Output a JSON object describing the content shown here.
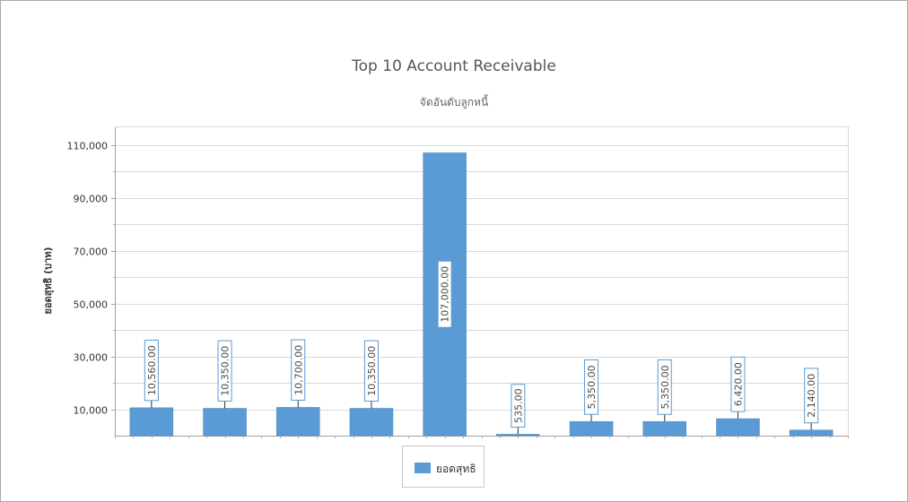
{
  "chart_data": {
    "type": "bar",
    "title": "Top 10 Account Receivable",
    "subtitle": "จัดอันดับลูกหนี้",
    "xlabel": "",
    "ylabel": "ยอดสุทธิ (บาท)",
    "ylim": [
      0,
      117000
    ],
    "y_ticks": [
      10000,
      30000,
      50000,
      70000,
      90000,
      110000
    ],
    "y_tick_labels": [
      "10,000",
      "30,000",
      "50,000",
      "70,000",
      "90,000",
      "110,000"
    ],
    "grid": true,
    "legend_position": "bottom-center",
    "series": [
      {
        "name": "ยอดสุทธิ",
        "color": "#5b9bd5",
        "values": [
          10560,
          10350,
          10700,
          10350,
          107000,
          535,
          5350,
          5350,
          6420,
          2140
        ],
        "data_labels": [
          "10,560.00",
          "10,350.00",
          "10,700.00",
          "10,350.00",
          "107,000.00",
          "535.00",
          "5,350.00",
          "5,350.00",
          "6,420.00",
          "2,140.00"
        ]
      }
    ]
  }
}
